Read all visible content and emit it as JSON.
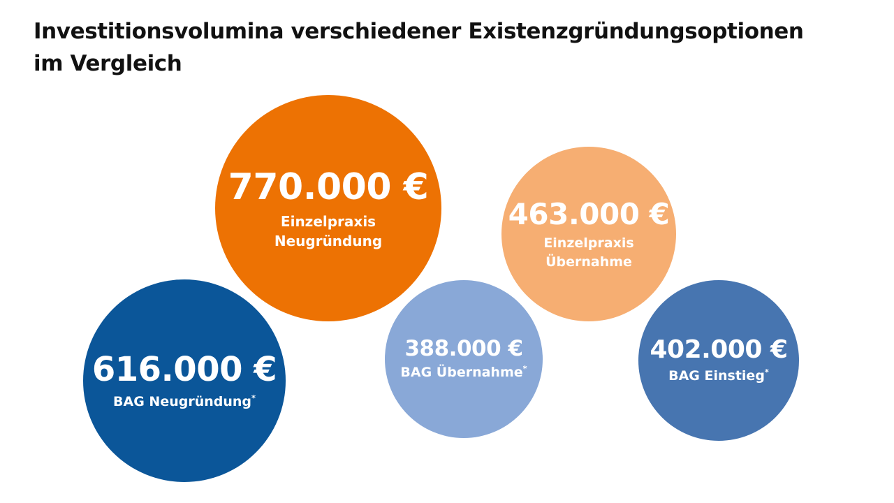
{
  "title": {
    "line1": "Investitionsvolumina verschiedener Existenzgründungsoptionen",
    "line2": "im Vergleich"
  },
  "chart_data": {
    "type": "bubble",
    "title": "Investitionsvolumina verschiedener Existenzgründungsoptionen im Vergleich",
    "unit": "€",
    "items": [
      {
        "id": "einzelpraxis-neugruendung",
        "value": 770000,
        "value_label": "770.000 €",
        "label_line1": "Einzelpraxis",
        "label_line2": "Neugründung",
        "footnote": "",
        "color": "#ed7203"
      },
      {
        "id": "einzelpraxis-uebernahme",
        "value": 463000,
        "value_label": "463.000 €",
        "label_line1": "Einzelpraxis",
        "label_line2": "Übernahme",
        "footnote": "",
        "color": "#f6ae72"
      },
      {
        "id": "bag-neugruendung",
        "value": 616000,
        "value_label": "616.000 €",
        "label_line1": "BAG Neugründung",
        "label_line2": "",
        "footnote": "*",
        "color": "#0b5699"
      },
      {
        "id": "bag-uebernahme",
        "value": 388000,
        "value_label": "388.000 €",
        "label_line1": "BAG Übernahme",
        "label_line2": "",
        "footnote": "*",
        "color": "#89a8d7"
      },
      {
        "id": "bag-einstieg",
        "value": 402000,
        "value_label": "402.000 €",
        "label_line1": "BAG Einstieg",
        "label_line2": "",
        "footnote": "*",
        "color": "#4775b0"
      }
    ]
  }
}
